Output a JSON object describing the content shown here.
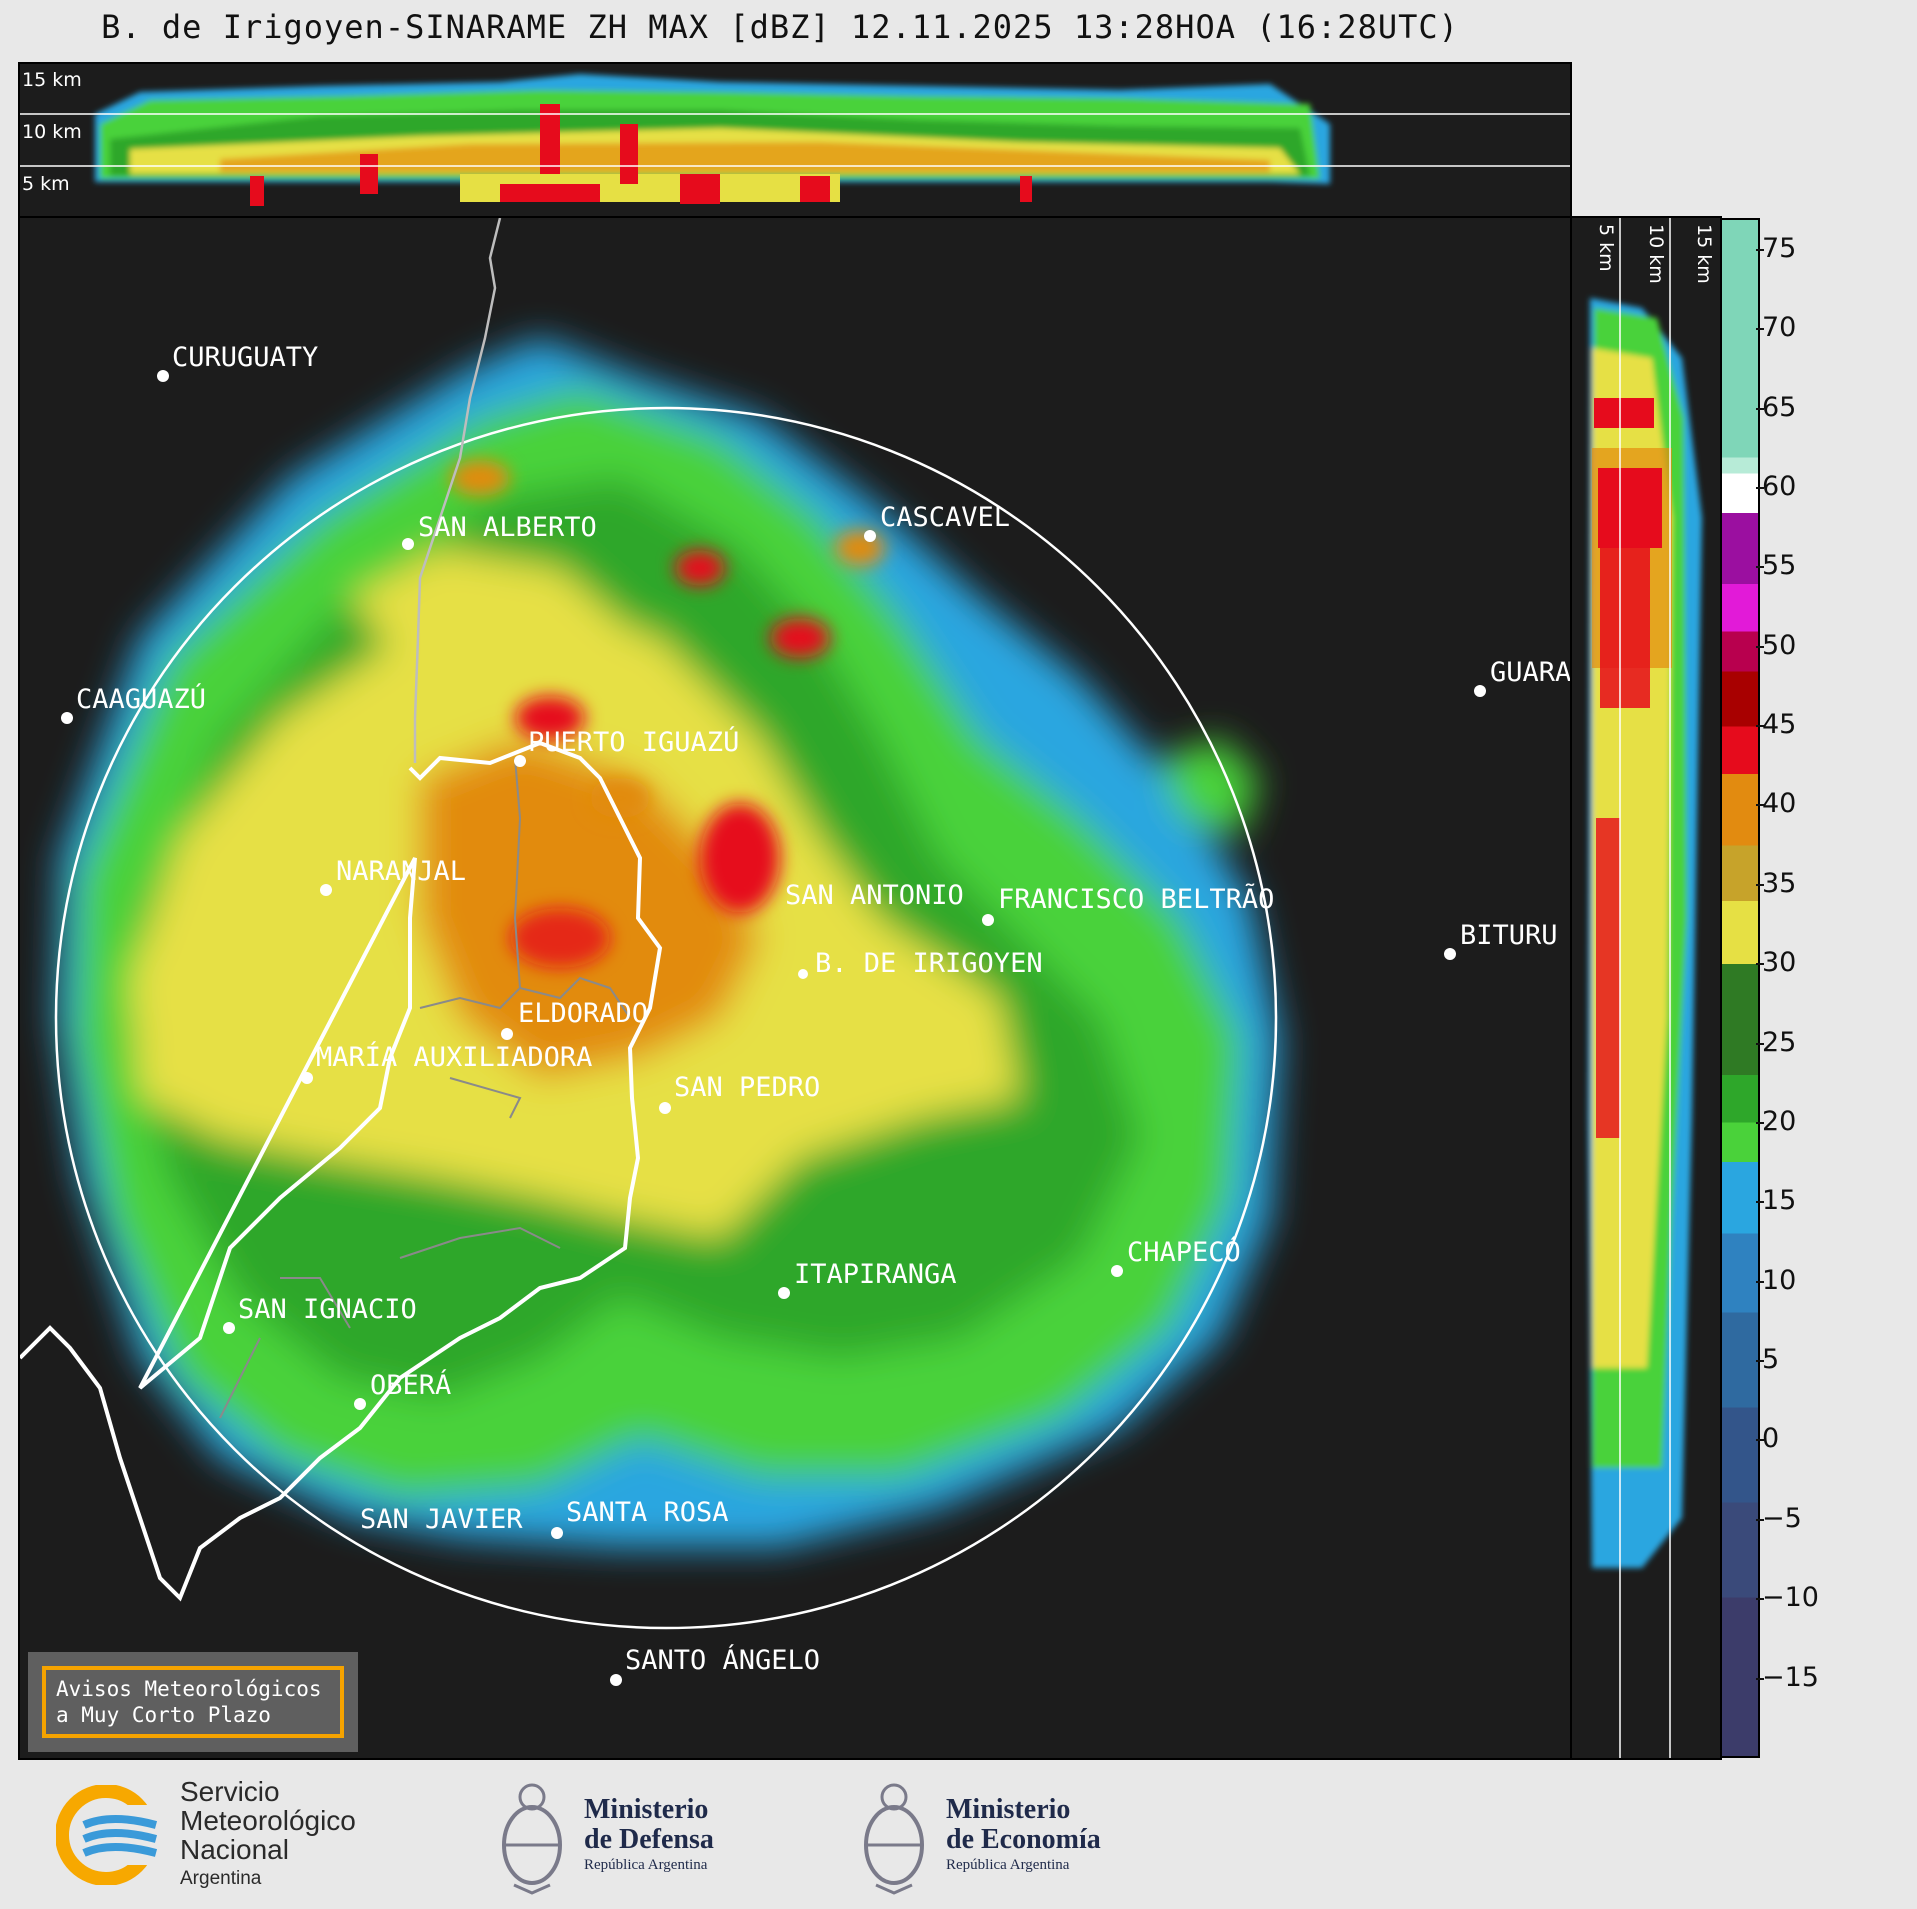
{
  "title": "B. de Irigoyen-SINARAME ZH MAX [dBZ] 12.11.2025 13:28HOA (16:28UTC)",
  "top_panel": {
    "height_labels": [
      "15 km",
      "10 km",
      "5 km"
    ]
  },
  "side_panel": {
    "height_labels": [
      "5 km",
      "10 km",
      "15 km"
    ]
  },
  "places": [
    {
      "name": "CURUGUATY"
    },
    {
      "name": "SAN ALBERTO"
    },
    {
      "name": "CASCAVEL"
    },
    {
      "name": "CAAGUAZÚ"
    },
    {
      "name": "GUARA"
    },
    {
      "name": "PUERTO IGUAZÚ"
    },
    {
      "name": "NARANJAL"
    },
    {
      "name": "SAN ANTONIO"
    },
    {
      "name": "FRANCISCO BELTRÃO"
    },
    {
      "name": "BITURU"
    },
    {
      "name": "B. DE IRIGOYEN"
    },
    {
      "name": "ELDORADO"
    },
    {
      "name": "MARÍA AUXILIADORA"
    },
    {
      "name": "SAN PEDRO"
    },
    {
      "name": "CHAPECÓ"
    },
    {
      "name": "ITAPIRANGA"
    },
    {
      "name": "SAN IGNACIO"
    },
    {
      "name": "OBERÁ"
    },
    {
      "name": "SAN JAVIER"
    },
    {
      "name": "SANTA ROSA"
    },
    {
      "name": "SANTO ÁNGELO"
    }
  ],
  "colorbar": {
    "unit": "dBZ",
    "ticks": [
      "75",
      "70",
      "65",
      "60",
      "55",
      "50",
      "45",
      "40",
      "35",
      "30",
      "25",
      "20",
      "15",
      "10",
      "5",
      "0",
      "−5",
      "−10",
      "−15"
    ],
    "colors": {
      "c70": "#7fd6b8",
      "c65": "#b7ebd7",
      "c60": "#ffffff",
      "c55": "#9b0fa0",
      "c52": "#e21ad8",
      "c50": "#b8004e",
      "c47": "#a80000",
      "c45": "#e60b1c",
      "c40": "#e28b10",
      "c37": "#c7a32a",
      "c33": "#e6e044",
      "c30": "#2f7a24",
      "c25": "#2ea72a",
      "c20": "#4ad23a",
      "c17": "#2aa6e0",
      "c13": "#2f82c0",
      "c8": "#2f6aa0",
      "c3": "#33558a",
      "c0": "#3a4a7a",
      "cm10": "#3c3c6a"
    }
  },
  "warning": {
    "line1": "Avisos Meteorológicos",
    "line2": "a Muy Corto Plazo"
  },
  "footer": {
    "smn": {
      "line1": "Servicio",
      "line2": "Meteorológico",
      "line3": "Nacional",
      "line4": "Argentina"
    },
    "defensa": {
      "line1": "Ministerio",
      "line2": "de Defensa",
      "line3": "República Argentina"
    },
    "economia": {
      "line1": "Ministerio",
      "line2": "de Economía",
      "line3": "República Argentina"
    }
  }
}
